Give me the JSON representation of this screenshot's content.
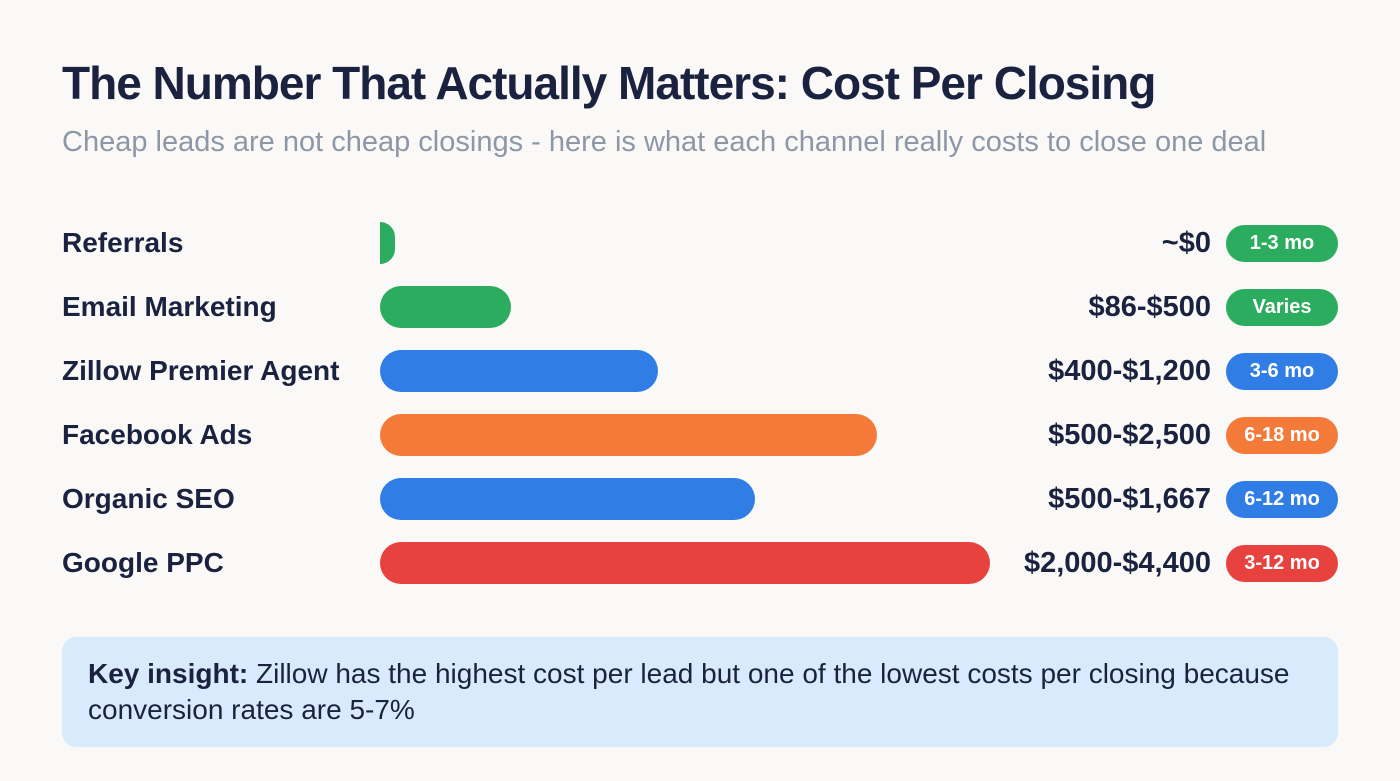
{
  "header": {
    "title": "The Number That Actually Matters: Cost Per Closing",
    "subtitle": "Cheap leads are not cheap closings - here is what each channel really costs to close one deal"
  },
  "chart_data": {
    "type": "bar",
    "orientation": "horizontal",
    "title": "The Number That Actually Matters: Cost Per Closing",
    "subtitle": "Cheap leads are not cheap closings - here is what each channel really costs to close one deal",
    "xlabel": "",
    "ylabel": "",
    "grid": false,
    "legend": false,
    "categories": [
      "Referrals",
      "Email Marketing",
      "Zillow Premier Agent",
      "Facebook Ads",
      "Organic SEO",
      "Google PPC"
    ],
    "channels": [
      {
        "label": "Referrals",
        "cost_range": "~$0",
        "cost_low": 0,
        "cost_high": 0,
        "timeline": "1-3 mo",
        "color": "#2bac5e",
        "bar_percent": 2.5
      },
      {
        "label": "Email Marketing",
        "cost_range": "$86-$500",
        "cost_low": 86,
        "cost_high": 500,
        "timeline": "Varies",
        "color": "#2bac5e",
        "bar_percent": 21.5
      },
      {
        "label": "Zillow Premier Agent",
        "cost_range": "$400-$1,200",
        "cost_low": 400,
        "cost_high": 1200,
        "timeline": "3-6 mo",
        "color": "#2f7de5",
        "bar_percent": 45.5
      },
      {
        "label": "Facebook Ads",
        "cost_range": "$500-$2,500",
        "cost_low": 500,
        "cost_high": 2500,
        "timeline": "6-18 mo",
        "color": "#f47a3a",
        "bar_percent": 81.5
      },
      {
        "label": "Organic SEO",
        "cost_range": "$500-$1,667",
        "cost_low": 500,
        "cost_high": 1667,
        "timeline": "6-12 mo",
        "color": "#2f7de5",
        "bar_percent": 61.5
      },
      {
        "label": "Google PPC",
        "cost_range": "$2,000-$4,400",
        "cost_low": 2000,
        "cost_high": 4400,
        "timeline": "3-12 mo",
        "color": "#e8423e",
        "bar_percent": 100
      }
    ]
  },
  "insight": {
    "label": "Key insight:",
    "text": " Zillow has the highest cost per lead but one of the lowest costs per closing because conversion rates are 5-7%"
  },
  "colors": {
    "green": "#2bac5e",
    "blue": "#2f7de5",
    "orange": "#f47a3a",
    "red": "#e8423e",
    "text_dark": "#1a2240",
    "text_muted": "#8e97a6",
    "insight_bg": "#d9eafc",
    "background": "#faf9f7"
  }
}
